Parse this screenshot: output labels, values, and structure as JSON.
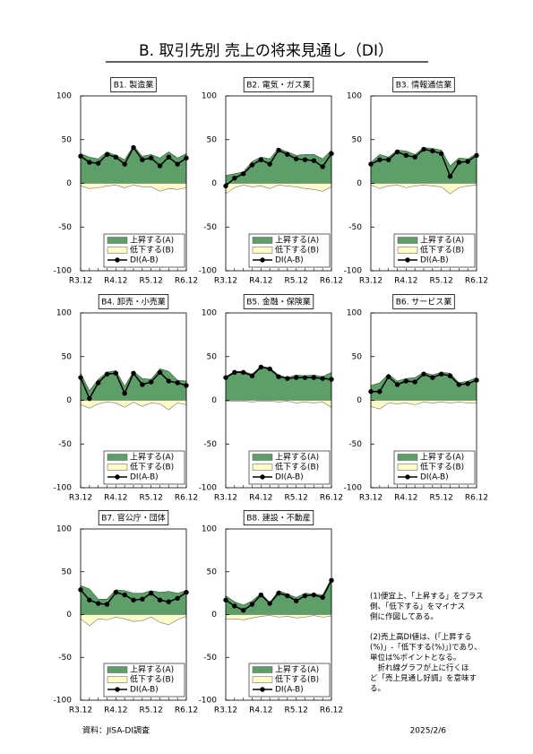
{
  "title": "B. 取引先別 売上の将来見通し（DI）",
  "chart_data": [
    {
      "type": "area-line",
      "title": "B1. 製造業",
      "categories": [
        "R3.12",
        null,
        null,
        null,
        "R4.12",
        null,
        null,
        null,
        "R5.12",
        null,
        null,
        null,
        "R6.12"
      ],
      "ylim": [
        -100,
        100
      ],
      "yticks": [
        -100,
        -50,
        0,
        50,
        100
      ],
      "series": [
        {
          "name": "上昇する(A)",
          "color": "#5e9e68",
          "values": [
            34,
            30,
            28,
            36,
            32,
            27,
            43,
            31,
            33,
            29,
            36,
            29,
            34
          ]
        },
        {
          "name": "低下する(B)",
          "color": "#fdfbc8",
          "values": [
            -3,
            -6,
            -5,
            -3,
            -2,
            -5,
            -2,
            -4,
            -4,
            -9,
            -6,
            -7,
            -5
          ]
        },
        {
          "name": "DI(A-B)",
          "color": "#000000",
          "values": [
            31,
            24,
            23,
            33,
            30,
            22,
            41,
            27,
            29,
            20,
            30,
            22,
            29
          ]
        }
      ]
    },
    {
      "type": "area-line",
      "title": "B2. 電気・ガス業",
      "categories": [
        "R3.12",
        null,
        null,
        null,
        "R4.12",
        null,
        null,
        null,
        "R5.12",
        null,
        null,
        null,
        "R6.12"
      ],
      "ylim": [
        -100,
        100
      ],
      "yticks": [
        -100,
        -50,
        0,
        50,
        100
      ],
      "series": [
        {
          "name": "上昇する(A)",
          "color": "#5e9e68",
          "values": [
            9,
            11,
            13,
            25,
            30,
            28,
            40,
            36,
            32,
            33,
            33,
            28,
            38
          ]
        },
        {
          "name": "低下する(B)",
          "color": "#fdfbc8",
          "values": [
            -12,
            -5,
            -2,
            -4,
            -3,
            -6,
            -2,
            -3,
            -4,
            -6,
            -7,
            -9,
            -4
          ]
        },
        {
          "name": "DI(A-B)",
          "color": "#000000",
          "values": [
            -3,
            6,
            11,
            21,
            27,
            22,
            38,
            33,
            28,
            27,
            26,
            19,
            34
          ]
        }
      ]
    },
    {
      "type": "area-line",
      "title": "B3. 情報通信業",
      "categories": [
        "R3.12",
        null,
        null,
        null,
        "R4.12",
        null,
        null,
        null,
        "R5.12",
        null,
        null,
        null,
        "R6.12"
      ],
      "ylim": [
        -100,
        100
      ],
      "yticks": [
        -100,
        -50,
        0,
        50,
        100
      ],
      "series": [
        {
          "name": "上昇する(A)",
          "color": "#5e9e68",
          "values": [
            24,
            33,
            30,
            38,
            37,
            33,
            41,
            40,
            38,
            20,
            29,
            28,
            34
          ]
        },
        {
          "name": "低下する(B)",
          "color": "#fdfbc8",
          "values": [
            -2,
            -6,
            -3,
            -2,
            -5,
            -3,
            -2,
            -3,
            -4,
            -12,
            -5,
            -3,
            -2
          ]
        },
        {
          "name": "DI(A-B)",
          "color": "#000000",
          "values": [
            22,
            27,
            27,
            36,
            32,
            30,
            39,
            37,
            34,
            8,
            24,
            25,
            32
          ]
        }
      ]
    },
    {
      "type": "area-line",
      "title": "B4. 卸売・小売業",
      "categories": [
        "R3.12",
        null,
        null,
        null,
        "R4.12",
        null,
        null,
        null,
        "R5.12",
        null,
        null,
        null,
        "R6.12"
      ],
      "ylim": [
        -100,
        100
      ],
      "yticks": [
        -100,
        -50,
        0,
        50,
        100
      ],
      "series": [
        {
          "name": "上昇する(A)",
          "color": "#5e9e68",
          "values": [
            31,
            11,
            24,
            32,
            34,
            16,
            33,
            25,
            24,
            36,
            33,
            23,
            22
          ]
        },
        {
          "name": "低下する(B)",
          "color": "#fdfbc8",
          "values": [
            -5,
            -9,
            -4,
            -2,
            -3,
            -8,
            -2,
            -7,
            -3,
            -4,
            -11,
            -3,
            -5
          ]
        },
        {
          "name": "DI(A-B)",
          "color": "#000000",
          "values": [
            26,
            2,
            20,
            30,
            31,
            8,
            31,
            18,
            21,
            32,
            22,
            20,
            17
          ]
        }
      ]
    },
    {
      "type": "area-line",
      "title": "B5. 金融・保険業",
      "categories": [
        "R3.12",
        null,
        null,
        null,
        "R4.12",
        null,
        null,
        null,
        "R5.12",
        null,
        null,
        null,
        "R6.12"
      ],
      "ylim": [
        -100,
        100
      ],
      "yticks": [
        -100,
        -50,
        0,
        50,
        100
      ],
      "series": [
        {
          "name": "上昇する(A)",
          "color": "#5e9e68",
          "values": [
            27,
            33,
            33,
            30,
            39,
            37,
            29,
            26,
            29,
            28,
            29,
            27,
            32
          ]
        },
        {
          "name": "低下する(B)",
          "color": "#fdfbc8",
          "values": [
            -1,
            -1,
            -1,
            -2,
            -1,
            -1,
            -2,
            -1,
            -3,
            -2,
            -3,
            -2,
            -8
          ]
        },
        {
          "name": "DI(A-B)",
          "color": "#000000",
          "values": [
            26,
            32,
            32,
            28,
            38,
            36,
            27,
            25,
            26,
            26,
            26,
            25,
            24
          ]
        }
      ]
    },
    {
      "type": "area-line",
      "title": "B6. サービス業",
      "categories": [
        "R3.12",
        null,
        null,
        null,
        "R4.12",
        null,
        null,
        null,
        "R5.12",
        null,
        null,
        null,
        "R6.12"
      ],
      "ylim": [
        -100,
        100
      ],
      "yticks": [
        -100,
        -50,
        0,
        50,
        100
      ],
      "series": [
        {
          "name": "上昇する(A)",
          "color": "#5e9e68",
          "values": [
            17,
            20,
            30,
            22,
            25,
            26,
            32,
            29,
            32,
            31,
            20,
            22,
            26
          ]
        },
        {
          "name": "低下する(B)",
          "color": "#fdfbc8",
          "values": [
            -7,
            -10,
            -3,
            -4,
            -3,
            -5,
            -2,
            -3,
            -2,
            -3,
            -2,
            -3,
            -3
          ]
        },
        {
          "name": "DI(A-B)",
          "color": "#000000",
          "values": [
            10,
            10,
            27,
            18,
            22,
            21,
            30,
            26,
            30,
            28,
            18,
            19,
            23
          ]
        }
      ]
    },
    {
      "type": "area-line",
      "title": "B7. 官公庁・団体",
      "categories": [
        "R3.12",
        null,
        null,
        null,
        "R4.12",
        null,
        null,
        null,
        "R5.12",
        null,
        null,
        null,
        "R6.12"
      ],
      "ylim": [
        -100,
        100
      ],
      "yticks": [
        -100,
        -50,
        0,
        50,
        100
      ],
      "series": [
        {
          "name": "上昇する(A)",
          "color": "#5e9e68",
          "values": [
            34,
            30,
            18,
            18,
            29,
            28,
            25,
            25,
            28,
            26,
            27,
            25,
            28
          ]
        },
        {
          "name": "低下する(B)",
          "color": "#fdfbc8",
          "values": [
            -5,
            -13,
            -5,
            -6,
            -3,
            -5,
            -8,
            -7,
            -3,
            -9,
            -12,
            -6,
            -2
          ]
        },
        {
          "name": "DI(A-B)",
          "color": "#000000",
          "values": [
            29,
            17,
            13,
            12,
            26,
            23,
            17,
            18,
            25,
            17,
            15,
            19,
            26
          ]
        }
      ]
    },
    {
      "type": "area-line",
      "title": "B8. 建設・不動産",
      "categories": [
        "R3.12",
        null,
        null,
        null,
        "R4.12",
        null,
        null,
        null,
        "R5.12",
        null,
        null,
        null,
        "R6.12"
      ],
      "ylim": [
        -100,
        100
      ],
      "yticks": [
        -100,
        -50,
        0,
        50,
        100
      ],
      "series": [
        {
          "name": "上昇する(A)",
          "color": "#5e9e68",
          "values": [
            22,
            15,
            11,
            16,
            25,
            14,
            28,
            24,
            20,
            25,
            24,
            23,
            42
          ]
        },
        {
          "name": "低下する(B)",
          "color": "#fdfbc8",
          "values": [
            -5,
            -5,
            -6,
            -4,
            -2,
            -1,
            -3,
            -2,
            -4,
            -3,
            -1,
            -3,
            -2
          ]
        },
        {
          "name": "DI(A-B)",
          "color": "#000000",
          "values": [
            17,
            10,
            5,
            12,
            23,
            13,
            25,
            22,
            16,
            22,
            23,
            20,
            40
          ]
        }
      ]
    }
  ],
  "notes": [
    [
      "(1)便宜上、「上昇する」をプラス",
      "側、「低下する」をマイナス",
      "側に作図してある。"
    ],
    [
      "(2)売上高DI値は、(「上昇する",
      "(%)」-「低下する(%)」)であり、",
      "単位は%ポイントとなる。",
      "　折れ線グラフが上に行くほ",
      "ど「売上見通し好調」を意味す",
      "る。"
    ]
  ],
  "source": "資料：JISA-DI調査",
  "date": "2025/2/6"
}
